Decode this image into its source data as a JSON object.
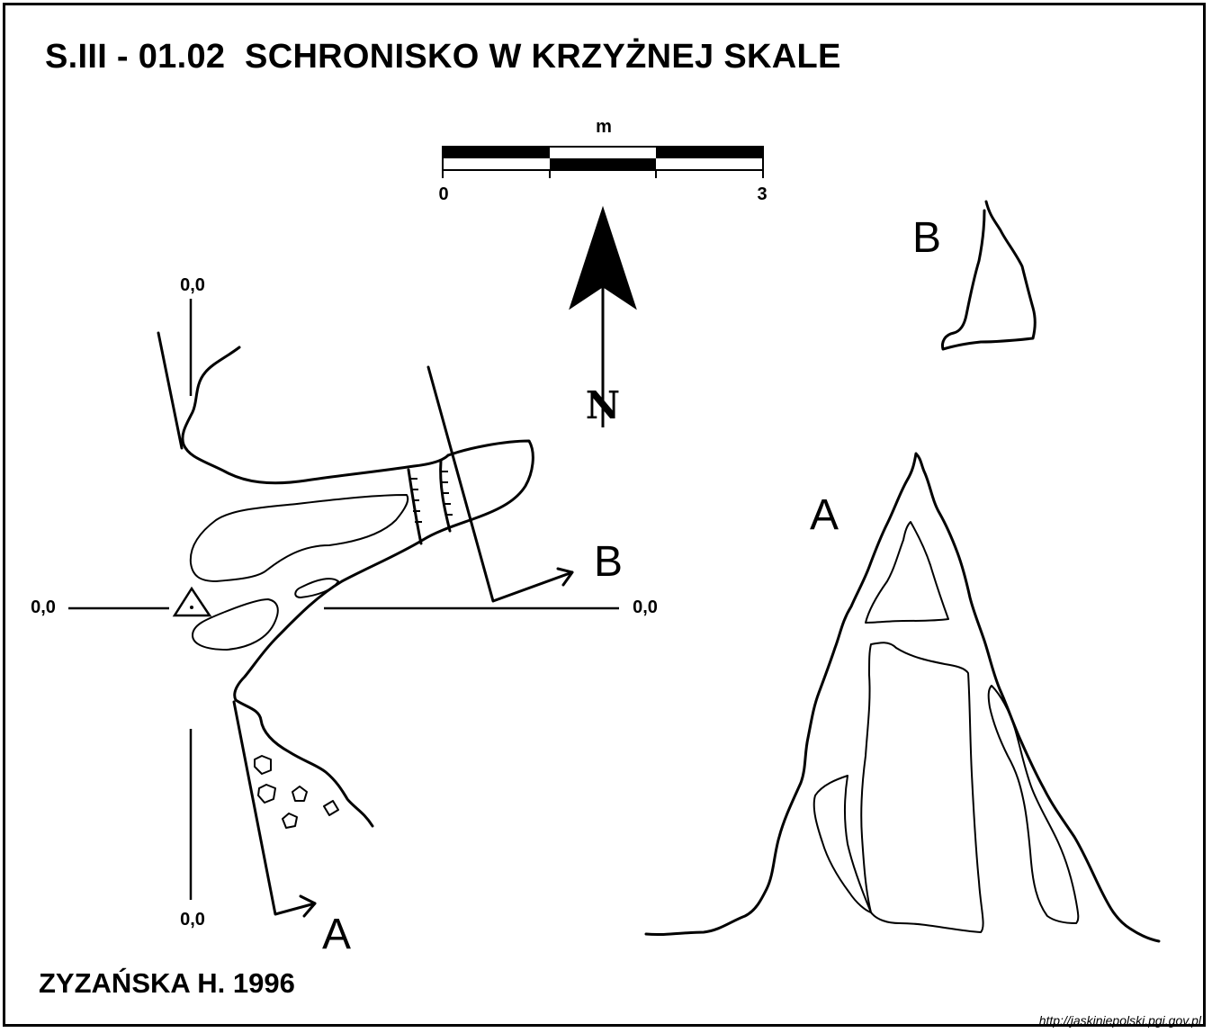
{
  "title": "S.III - 01.02  SCHRONISKO W KRZYŻNEJ SKALE",
  "author": "ZYZAŃSKA H. 1996",
  "source_url": "http://jaskiniepolski.pgi.gov.pl",
  "scale_bar": {
    "unit": "m",
    "start": "0",
    "end": "3"
  },
  "north_label": "N",
  "elevation_labels": {
    "top": "0,0",
    "left": "0,0",
    "right": "0,0",
    "bottom": "0,0"
  },
  "section_labels": {
    "a_plan": "A",
    "b_plan": "B",
    "a_section": "A",
    "b_section": "B"
  }
}
